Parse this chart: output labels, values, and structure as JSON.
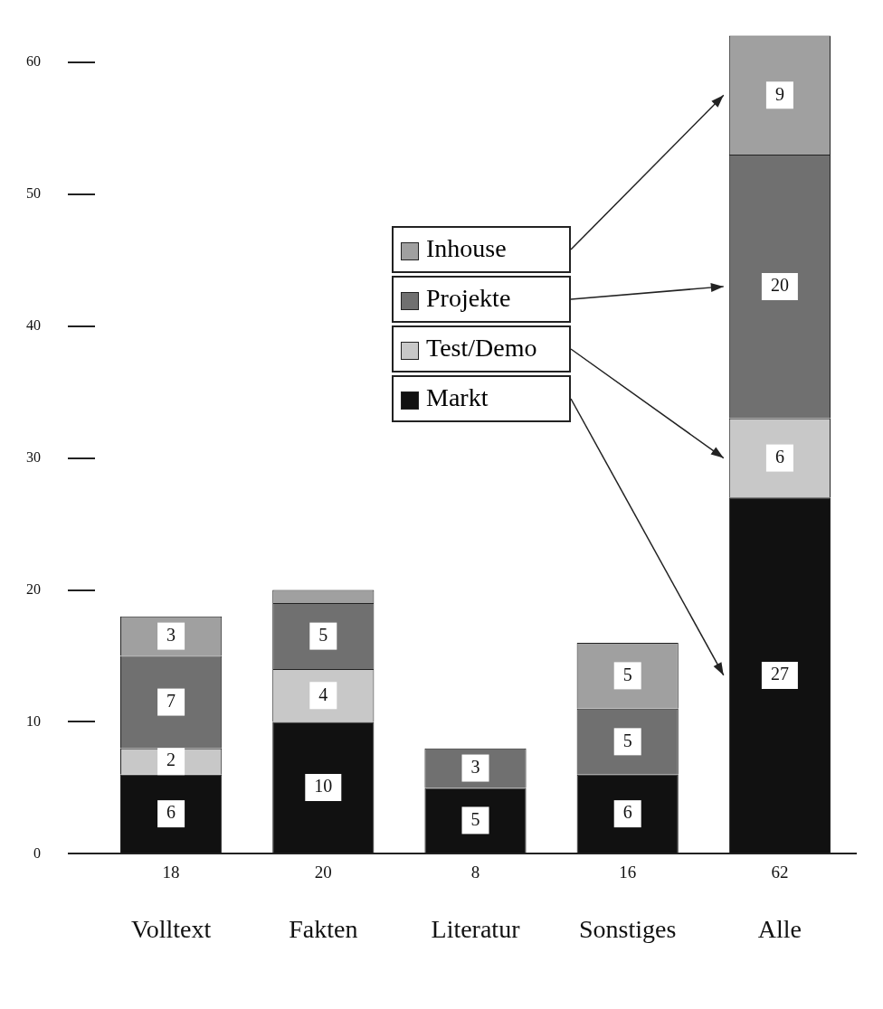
{
  "chart_data": {
    "type": "bar",
    "stacked": true,
    "categories": [
      "Volltext",
      "Fakten",
      "Literatur",
      "Sonstiges",
      "Alle"
    ],
    "ylim": [
      0,
      62
    ],
    "yticks": [
      0,
      10,
      20,
      30,
      40,
      50,
      60
    ],
    "grid": false,
    "legend": "center",
    "totals": [
      "18",
      "20",
      "8",
      "16",
      "62"
    ],
    "series": [
      {
        "name": "Markt",
        "color": "#111111",
        "values": [
          6,
          10,
          5,
          6,
          27
        ],
        "value_labels": [
          "6",
          "10",
          "5",
          "6",
          "27"
        ]
      },
      {
        "name": "Test/Demo",
        "color": "#c8c8c8",
        "values": [
          2,
          4,
          0,
          0,
          6
        ],
        "value_labels": [
          "2",
          "4",
          null,
          null,
          "6"
        ]
      },
      {
        "name": "Projekte",
        "color": "#707070",
        "values": [
          7,
          5,
          3,
          5,
          20
        ],
        "value_labels": [
          "7",
          "5",
          "3",
          "5",
          "20"
        ]
      },
      {
        "name": "Inhouse",
        "color": "#a0a0a0",
        "values": [
          3,
          1,
          0,
          5,
          9
        ],
        "value_labels": [
          "3",
          null,
          null,
          "5",
          "9"
        ]
      }
    ]
  }
}
